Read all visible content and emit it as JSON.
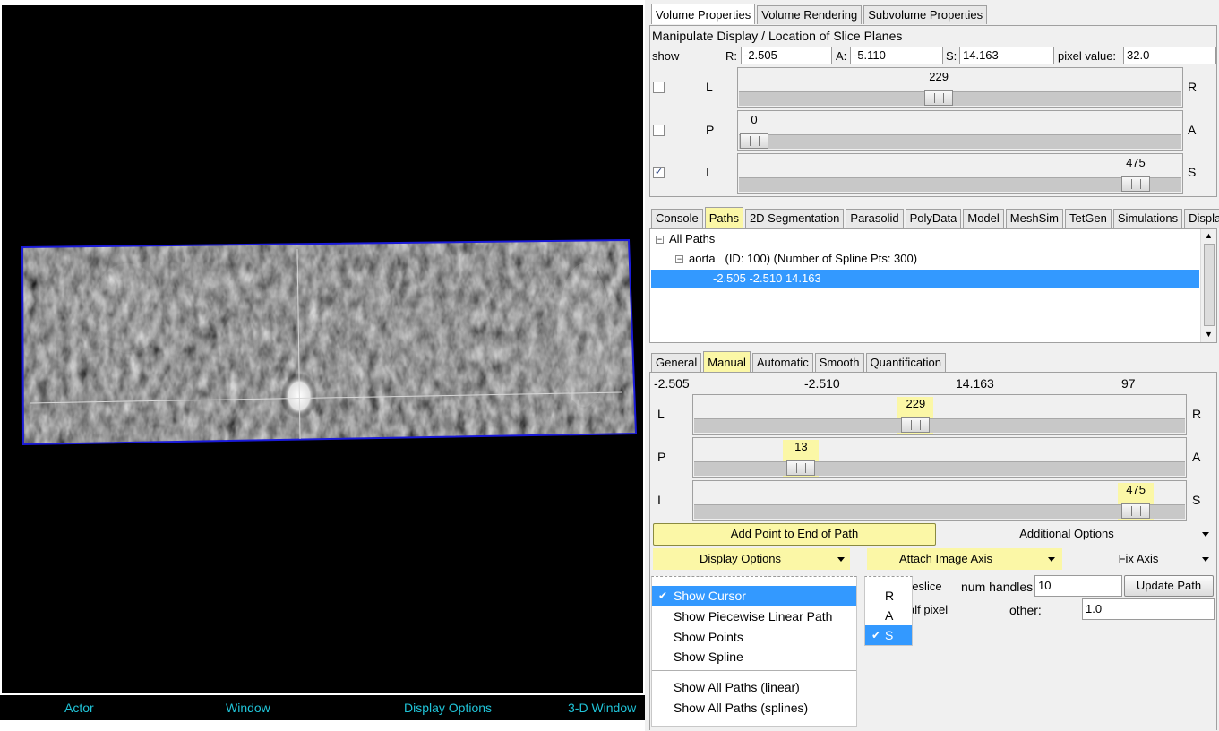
{
  "viewer": {
    "bottom_bar": [
      "Actor",
      "Window",
      "Display Options",
      "3-D Window"
    ]
  },
  "volume_tabs": [
    "Volume Properties",
    "Volume Rendering",
    "Subvolume Properties"
  ],
  "volume_props": {
    "heading": "Manipulate Display / Location of Slice Planes",
    "show_label": "show",
    "r_label": "R:",
    "r_value": "-2.505",
    "a_label": "A:",
    "a_value": "-5.110",
    "s_label": "S:",
    "s_value": "14.163",
    "pixel_label": "pixel value:",
    "pixel_value": "32.0",
    "sliders": [
      {
        "left": "L",
        "right": "R",
        "value": "229",
        "fraction": 0.45,
        "checked": false
      },
      {
        "left": "P",
        "right": "A",
        "value": "0",
        "fraction": 0.0,
        "checked": false
      },
      {
        "left": "I",
        "right": "S",
        "value": "475",
        "fraction": 0.93,
        "checked": true
      }
    ]
  },
  "main_tabs": [
    "Console",
    "Paths",
    "2D Segmentation",
    "Parasolid",
    "PolyData",
    "Model",
    "MeshSim",
    "TetGen",
    "Simulations",
    "Displays"
  ],
  "tree": {
    "root": "All Paths",
    "path_name": "aorta",
    "path_info": "(ID: 100)  (Number of Spline Pts: 300)",
    "point": "-2.505 -2.510 14.163"
  },
  "sub_tabs": [
    "General",
    "Manual",
    "Automatic",
    "Smooth",
    "Quantification"
  ],
  "manual": {
    "coords": [
      "-2.505",
      "-2.510",
      "14.163",
      "97"
    ],
    "sliders": [
      {
        "left": "L",
        "right": "R",
        "value": "229",
        "fraction": 0.45
      },
      {
        "left": "P",
        "right": "A",
        "value": "13",
        "fraction": 0.2
      },
      {
        "left": "I",
        "right": "S",
        "value": "475",
        "fraction": 0.93
      }
    ],
    "add_point_button": "Add Point to End of Path",
    "additional_options": "Additional Options",
    "display_options": "Display Options",
    "attach_image_axis": "Attach Image Axis",
    "fix_axis": "Fix Axis",
    "reslice_fragment": "reslice",
    "num_handles_label": "num handles",
    "num_handles_value": "10",
    "update_path": "Update Path",
    "half_pixel_fragment": "alf pixel",
    "other_label": "other:",
    "other_value": "1.0"
  },
  "display_menu": {
    "items": [
      "Show Cursor",
      "Show Piecewise Linear Path",
      "Show Points",
      "Show Spline"
    ],
    "items2": [
      "Show All Paths (linear)",
      "Show All Paths (splines)"
    ],
    "checked": "Show Cursor"
  },
  "axis_menu": {
    "items": [
      "R",
      "A",
      "S"
    ],
    "checked": "S"
  },
  "colors": {
    "highlight": "#fbf7a6",
    "selection": "#3399ff",
    "viewer_text": "#20c4d8",
    "frame": "#1a1ad8"
  }
}
